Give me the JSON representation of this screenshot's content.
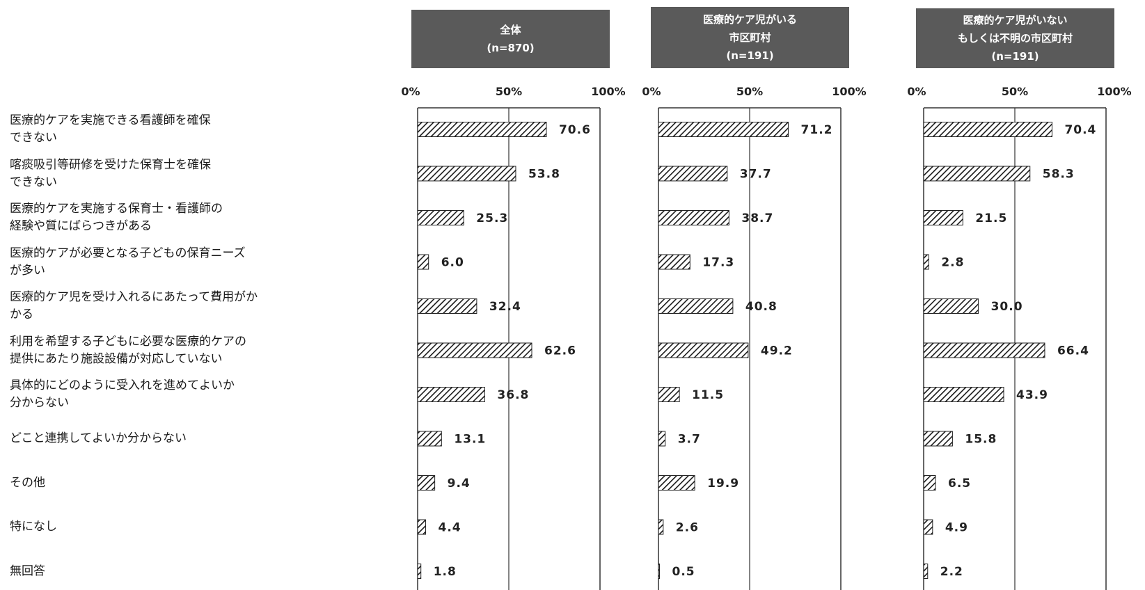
{
  "chart_data": {
    "type": "bar",
    "orientation": "horizontal",
    "categories": [
      "医療的ケアを実施できる看護師を確保\nできない",
      "喀痰吸引等研修を受けた保育士を確保\nできない",
      "医療的ケアを実施する保育士・看護師の\n経験や質にばらつきがある",
      "医療的ケアが必要となる子どもの保育ニーズ\nが多い",
      "医療的ケア児を受け入れるにあたって費用がか\nかる",
      "利用を希望する子どもに必要な医療的ケアの\n提供にあたり施設設備が対応していない",
      "具体的にどのように受入れを進めてよいか\n分からない",
      "どこと連携してよいか分からない",
      "その他",
      "特になし",
      "無回答"
    ],
    "ticks": [
      "0%",
      "50%",
      "100%"
    ],
    "xlim": [
      0,
      100
    ],
    "grid": true,
    "series": [
      {
        "name": "全体\n(n=870)",
        "values": [
          70.6,
          53.8,
          25.3,
          6.0,
          32.4,
          62.6,
          36.8,
          13.1,
          9.4,
          4.4,
          1.8
        ],
        "labels": [
          "70.6",
          "53.8",
          "25.3",
          "6.0",
          "32.4",
          "62.6",
          "36.8",
          "13.1",
          "9.4",
          "4.4",
          "1.8"
        ]
      },
      {
        "name": "医療的ケア児がいる\n市区町村\n(n=191)",
        "values": [
          71.2,
          37.7,
          38.7,
          17.3,
          40.8,
          49.2,
          11.5,
          3.7,
          19.9,
          2.6,
          0.5
        ],
        "labels": [
          "71.2",
          "37.7",
          "38.7",
          "17.3",
          "40.8",
          "49.2",
          "11.5",
          "3.7",
          "19.9",
          "2.6",
          "0.5"
        ]
      },
      {
        "name": "医療的ケア児がいない\nもしくは不明の市区町村\n(n=191)",
        "values": [
          70.4,
          58.3,
          21.5,
          2.8,
          30.0,
          66.4,
          43.9,
          15.8,
          6.5,
          4.9,
          2.2
        ],
        "labels": [
          "70.4",
          "58.3",
          "21.5",
          "2.8",
          "30.0",
          "66.4",
          "43.9",
          "15.8",
          "6.5",
          "4.9",
          "2.2"
        ]
      }
    ],
    "colors": {
      "header_bg": "#5a5a5a",
      "bar_stroke": "#222222",
      "frame": "#333333"
    }
  }
}
